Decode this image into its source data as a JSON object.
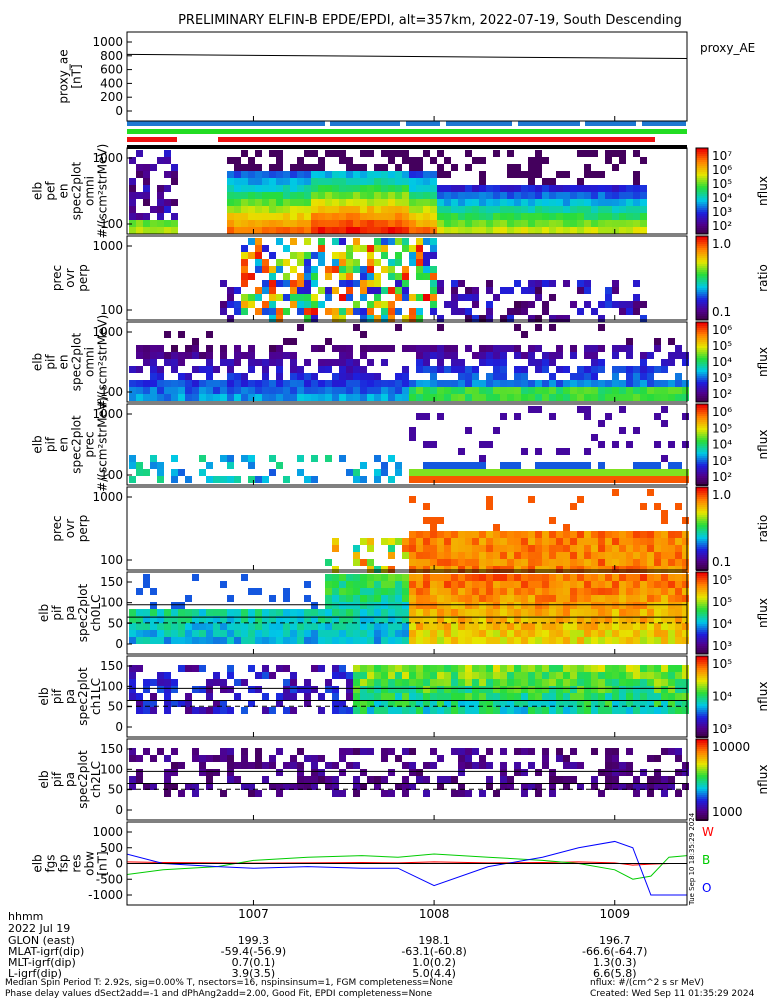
{
  "title": "PRELIMINARY ELFIN-B EPDE/EPDI, alt=357km, 2022-07-19, South Descending",
  "colors": {
    "frame": "#000000",
    "bar_blue": "#1e78d2",
    "bar_green": "#22dd22",
    "bar_red": "#ee1111",
    "bar_black": "#000000",
    "line_blue": "#0000ff",
    "line_green": "#00cc00",
    "line_red": "#ff0000"
  },
  "time_axis": {
    "ticks": [
      "1007",
      "1008",
      "1009"
    ],
    "label_hhmm": "hhmm",
    "label_date": "2022 Jul 19"
  },
  "panels": [
    {
      "id": "proxy_ae",
      "ylabel": [
        "proxy_ae",
        "[nT]"
      ],
      "right_label": "proxy_AE",
      "yticks": [
        "1000",
        "800",
        "600",
        "400",
        "200",
        "0"
      ]
    },
    {
      "id": "pef_omni",
      "ylabel": [
        "elb",
        "pef",
        "en",
        "spec2plot",
        "omni",
        "#/(scm²strMeV)"
      ],
      "yticks": [
        "1000",
        "100"
      ],
      "cbar_ticks": [
        "10⁷",
        "10⁶",
        "10⁵",
        "10⁴",
        "10³",
        "10²"
      ],
      "cbar_label": "nflux"
    },
    {
      "id": "pef_ratio",
      "ylabel": [
        "prec",
        "ovr",
        "perp"
      ],
      "yticks": [
        "1000",
        "100"
      ],
      "cbar_ticks": [
        "1.0",
        "0.1"
      ],
      "cbar_label": "ratio"
    },
    {
      "id": "pif_omni",
      "ylabel": [
        "elb",
        "pif",
        "en",
        "spec2plot",
        "omni",
        "#/(scm²strMeV)"
      ],
      "yticks": [
        "1000",
        "100"
      ],
      "cbar_ticks": [
        "10⁶",
        "10⁵",
        "10⁴",
        "10³",
        "10²"
      ],
      "cbar_label": "nflux"
    },
    {
      "id": "pif_prec",
      "ylabel": [
        "elb",
        "pif",
        "en",
        "spec2plot",
        "prec",
        "#/(scm²strMeV)"
      ],
      "yticks": [
        "1000",
        "100"
      ],
      "cbar_ticks": [
        "10⁶",
        "10⁵",
        "10⁴",
        "10³",
        "10²"
      ],
      "cbar_label": "nflux"
    },
    {
      "id": "pif_ratio",
      "ylabel": [
        "prec",
        "ovr",
        "perp"
      ],
      "yticks": [
        "1000",
        "100"
      ],
      "cbar_ticks": [
        "1.0",
        "0.1"
      ],
      "cbar_label": "ratio"
    },
    {
      "id": "pa_ch0",
      "ylabel": [
        "elb",
        "pif",
        "pa",
        "spec2plot",
        "ch0LC"
      ],
      "yticks": [
        "150",
        "100",
        "50",
        "0"
      ],
      "cbar_ticks": [
        "10⁵",
        "10⁵",
        "10⁴",
        "10³"
      ],
      "cbar_label": "nflux"
    },
    {
      "id": "pa_ch1",
      "ylabel": [
        "elb",
        "pif",
        "pa",
        "spec2plot",
        "ch1LC"
      ],
      "yticks": [
        "150",
        "100",
        "50",
        "0"
      ],
      "cbar_ticks": [
        "10⁵",
        "10⁴",
        "10³"
      ],
      "cbar_label": "nflux"
    },
    {
      "id": "pa_ch2",
      "ylabel": [
        "elb",
        "pif",
        "pa",
        "spec2plot",
        "ch2LC"
      ],
      "yticks": [
        "150",
        "100",
        "50",
        "0"
      ],
      "cbar_ticks": [
        "10000",
        "1000"
      ],
      "cbar_label": "nflux"
    },
    {
      "id": "fgs",
      "ylabel": [
        "elb",
        "fgs",
        "fsp",
        "res",
        "obw",
        "[nT]"
      ],
      "yticks": [
        "1000",
        "500",
        "0",
        "-500",
        "-1000"
      ],
      "legend": [
        "W",
        "B",
        "O"
      ]
    }
  ],
  "chart_data": [
    {
      "type": "line",
      "panel": "proxy_ae",
      "x": [
        1006.3,
        1009.4
      ],
      "series": [
        {
          "name": "proxy_AE",
          "values": [
            820,
            760
          ]
        }
      ],
      "ylim": [
        0,
        1000
      ]
    },
    {
      "type": "line",
      "panel": "fgs",
      "x": [
        1006.3,
        1006.5,
        1006.8,
        1007.0,
        1007.3,
        1007.6,
        1007.8,
        1008.0,
        1008.3,
        1008.6,
        1008.8,
        1009.0,
        1009.1,
        1009.2,
        1009.3,
        1009.4
      ],
      "series": [
        {
          "name": "W",
          "values": [
            50,
            30,
            20,
            10,
            20,
            30,
            20,
            50,
            20,
            30,
            50,
            20,
            -50,
            -20,
            0,
            0
          ]
        },
        {
          "name": "B",
          "values": [
            -350,
            -200,
            -100,
            100,
            200,
            250,
            200,
            300,
            200,
            100,
            0,
            -200,
            -500,
            -400,
            200,
            250
          ]
        },
        {
          "name": "O",
          "values": [
            300,
            0,
            -100,
            -150,
            -100,
            -150,
            -150,
            -700,
            -100,
            200,
            500,
            700,
            500,
            -1000,
            -1000,
            -1000
          ]
        }
      ],
      "ylim": [
        -1000,
        1000
      ]
    }
  ],
  "bottom_table": {
    "rows": [
      {
        "label": "GLON (east)",
        "values": [
          "199.3",
          "198.1",
          "196.7"
        ]
      },
      {
        "label": "MLAT-igrf(dip)",
        "values": [
          "-59.4(-56.9)",
          "-63.1(-60.8)",
          "-66.6(-64.7)"
        ]
      },
      {
        "label": "MLT-igrf(dip)",
        "values": [
          "0.7(0.1)",
          "1.0(0.2)",
          "1.3(0.3)"
        ]
      },
      {
        "label": "L-igrf(dip)",
        "values": [
          "3.9(3.5)",
          "5.0(4.4)",
          "6.6(5.8)"
        ]
      }
    ]
  },
  "footer": {
    "line1": "Median Spin Period T: 2.92s, sig=0.00% T, nsectors=16, nspinsinsum=1, FGM completeness=None",
    "line1_right": "nflux: #/(cm^2 s sr MeV)",
    "line2": "Phase delay values dSect2add=-1 and dPhAng2add=2.00, Good Fit, EPDI completeness=None",
    "line2_right": "Created: Wed Sep 11 01:35:29 2024",
    "side_text": "Tue Sep 10 18:35:29 2024"
  }
}
